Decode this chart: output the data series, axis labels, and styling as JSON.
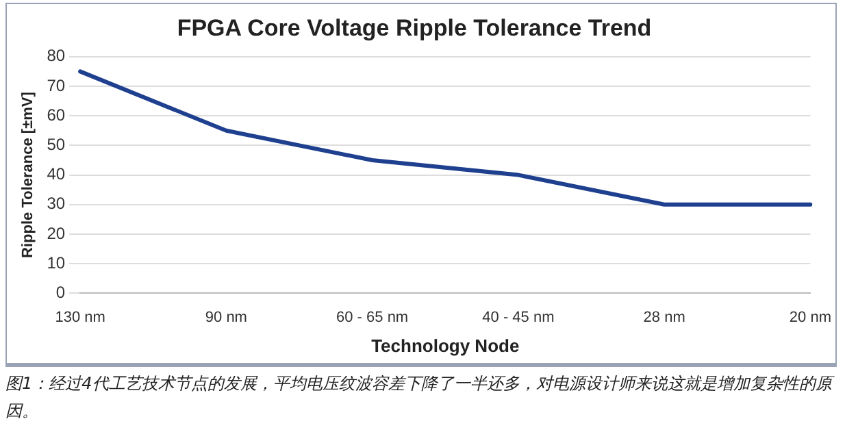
{
  "chart_data": {
    "type": "line",
    "title": "FPGA Core Voltage Ripple Tolerance Trend",
    "xlabel": "Technology Node",
    "ylabel": "Ripple Tolerance [±mV]",
    "categories": [
      "130 nm",
      "90 nm",
      "60 - 65 nm",
      "40 - 45 nm",
      "28 nm",
      "20 nm"
    ],
    "series": [
      {
        "color": "#1f3f8f",
        "values": [
          75,
          55,
          45,
          40,
          30,
          30
        ]
      }
    ],
    "ylim": [
      0,
      80
    ],
    "yticks": [
      0,
      10,
      20,
      30,
      40,
      50,
      60,
      70,
      80
    ],
    "grid": "y",
    "legend": false,
    "marker": "none",
    "line_style": "solid",
    "annotations": [
      "图1：经过4代工艺技术节点的发展，平均电压纹波容差下降了一半还多，对电源设计师来说这就是增加复杂性的原因。"
    ]
  }
}
